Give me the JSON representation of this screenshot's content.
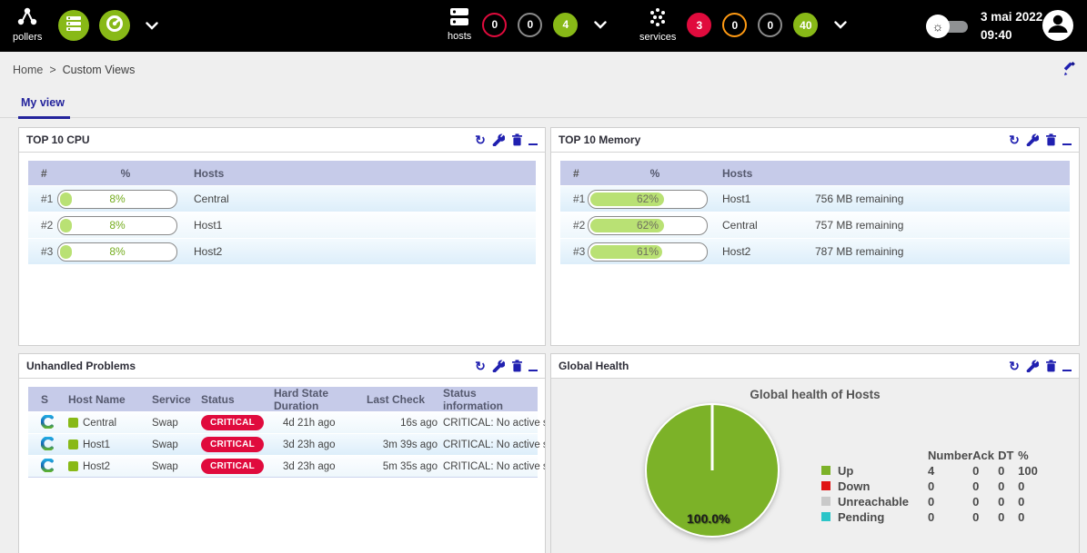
{
  "topbar": {
    "pollers_label": "pollers",
    "hosts_label": "hosts",
    "services_label": "services",
    "host_counters": [
      {
        "value": "0",
        "variant": "ring-red"
      },
      {
        "value": "0",
        "variant": "ring-gray"
      },
      {
        "value": "4",
        "variant": "fill-green"
      }
    ],
    "service_counters": [
      {
        "value": "3",
        "variant": "fill-red"
      },
      {
        "value": "0",
        "variant": "ring-orange"
      },
      {
        "value": "0",
        "variant": "ring-gray"
      },
      {
        "value": "40",
        "variant": "fill-green"
      }
    ],
    "date": "3 mai 2022",
    "time": "09:40"
  },
  "breadcrumb": {
    "home": "Home",
    "separator": ">",
    "current": "Custom Views"
  },
  "tab": {
    "label": "My view"
  },
  "colors": {
    "accent_green": "#88b917",
    "status_red": "#e00b3d",
    "status_orange": "#ff9a13",
    "navy_icons": "#2020b0",
    "pie_green": "#7cb228",
    "pending_cyan": "#2cc5c8",
    "unreachable_gray": "#c9c9c9"
  },
  "panel_action_icons": [
    "refresh-icon",
    "wrench-icon",
    "trash-icon",
    "minimize-icon"
  ],
  "panels": {
    "cpu": {
      "title": "TOP 10 CPU",
      "columns": {
        "rank": "#",
        "pct": "%",
        "hosts": "Hosts"
      },
      "rows": [
        {
          "rank": "#1",
          "pct": 8,
          "pct_label": "8%",
          "host": "Central"
        },
        {
          "rank": "#2",
          "pct": 8,
          "pct_label": "8%",
          "host": "Host1"
        },
        {
          "rank": "#3",
          "pct": 8,
          "pct_label": "8%",
          "host": "Host2"
        }
      ]
    },
    "memory": {
      "title": "TOP 10 Memory",
      "columns": {
        "rank": "#",
        "pct": "%",
        "hosts": "Hosts"
      },
      "rows": [
        {
          "rank": "#1",
          "pct": 62,
          "pct_label": "62%",
          "host": "Host1",
          "remaining": "756 MB remaining"
        },
        {
          "rank": "#2",
          "pct": 62,
          "pct_label": "62%",
          "host": "Central",
          "remaining": "757 MB remaining"
        },
        {
          "rank": "#3",
          "pct": 61,
          "pct_label": "61%",
          "host": "Host2",
          "remaining": "787 MB remaining"
        }
      ]
    },
    "problems": {
      "title": "Unhandled Problems",
      "columns": {
        "s": "S",
        "host": "Host Name",
        "service": "Service",
        "status": "Status",
        "duration": "Hard State Duration",
        "last_check": "Last Check",
        "info": "Status information"
      },
      "rows": [
        {
          "host": "Central",
          "service": "Swap",
          "status": "CRITICAL",
          "duration": "4d 21h ago",
          "last_check": "16s ago",
          "info": "CRITICAL: No active swap"
        },
        {
          "host": "Host1",
          "service": "Swap",
          "status": "CRITICAL",
          "duration": "3d 23h ago",
          "last_check": "3m 39s ago",
          "info": "CRITICAL: No active swap"
        },
        {
          "host": "Host2",
          "service": "Swap",
          "status": "CRITICAL",
          "duration": "3d 23h ago",
          "last_check": "5m 35s ago",
          "info": "CRITICAL: No active swap"
        }
      ]
    },
    "health": {
      "title": "Global Health"
    }
  },
  "chart_data": {
    "type": "pie",
    "title": "Global health of Hosts",
    "categories": [
      "Up",
      "Down",
      "Unreachable",
      "Pending"
    ],
    "values_pct": [
      100.0,
      0,
      0,
      0
    ],
    "counts": [
      4,
      0,
      0,
      0
    ],
    "slice_colors": [
      "#7cb228",
      "#e01414",
      "#c9c9c9",
      "#2cc5c8"
    ],
    "center_label": "100.0%",
    "legend_position": "right",
    "legend": {
      "headers": {
        "number": "Number",
        "ack": "Ack",
        "dt": "DT",
        "pct": "%"
      },
      "rows": [
        {
          "label": "Up",
          "color": "#7cb228",
          "number": "4",
          "ack": "0",
          "dt": "0",
          "pct": "100"
        },
        {
          "label": "Down",
          "color": "#e01414",
          "number": "0",
          "ack": "0",
          "dt": "0",
          "pct": "0"
        },
        {
          "label": "Unreachable",
          "color": "#c9c9c9",
          "number": "0",
          "ack": "0",
          "dt": "0",
          "pct": "0"
        },
        {
          "label": "Pending",
          "color": "#2cc5c8",
          "number": "0",
          "ack": "0",
          "dt": "0",
          "pct": "0"
        }
      ]
    }
  }
}
